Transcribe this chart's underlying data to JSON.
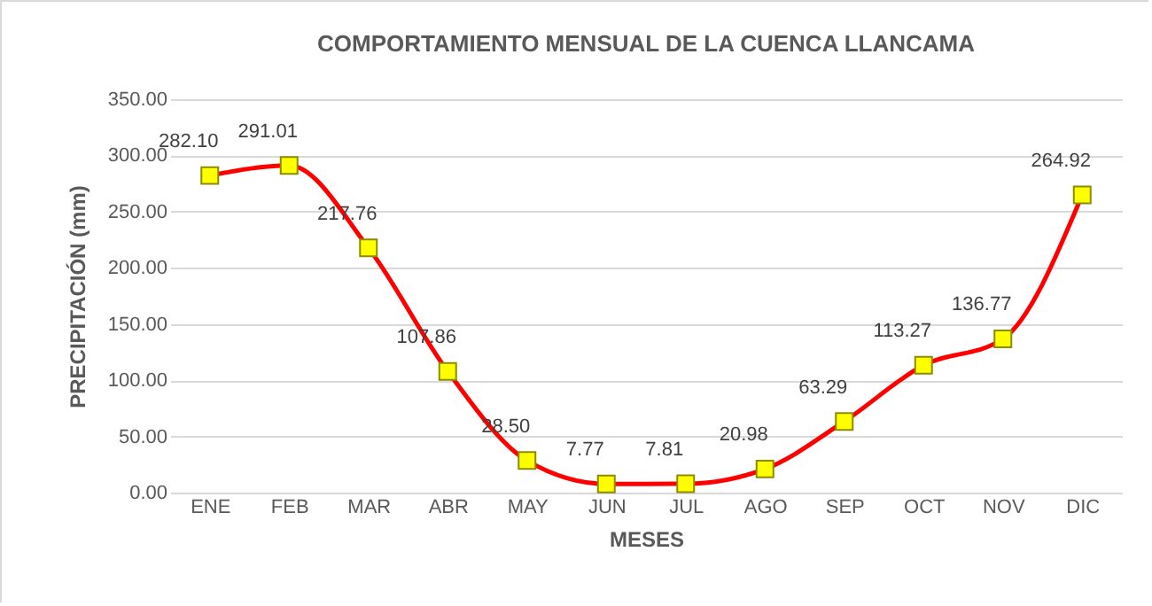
{
  "chart_data": {
    "type": "line",
    "title": "COMPORTAMIENTO MENSUAL DE LA CUENCA LLANCAMA",
    "xlabel": "MESES",
    "ylabel": "PRECIPITACIÓN (mm)",
    "categories": [
      "ENE",
      "FEB",
      "MAR",
      "ABR",
      "MAY",
      "JUN",
      "JUL",
      "AGO",
      "SEP",
      "OCT",
      "NOV",
      "DIC"
    ],
    "series": [
      {
        "color": "#ff0000",
        "values": [
          282.1,
          291.01,
          217.76,
          107.86,
          28.5,
          7.77,
          7.81,
          20.98,
          63.29,
          113.27,
          136.77,
          264.92
        ],
        "value_labels": [
          "282.10",
          "291.01",
          "217.76",
          "107.86",
          "28.50",
          "7.77",
          "7.81",
          "20.98",
          "63.29",
          "113.27",
          "136.77",
          "264.92"
        ]
      }
    ],
    "ylim": [
      0,
      350
    ],
    "yticks": [
      {
        "value": 0,
        "label": "0.00"
      },
      {
        "value": 50,
        "label": "50.00"
      },
      {
        "value": 100,
        "label": "100.00"
      },
      {
        "value": 150,
        "label": "150.00"
      },
      {
        "value": 200,
        "label": "200.00"
      },
      {
        "value": 250,
        "label": "250.00"
      },
      {
        "value": 300,
        "label": "300.00"
      },
      {
        "value": 350,
        "label": "350.00"
      }
    ],
    "grid": "y",
    "marker": "square",
    "line_style": "solid"
  }
}
